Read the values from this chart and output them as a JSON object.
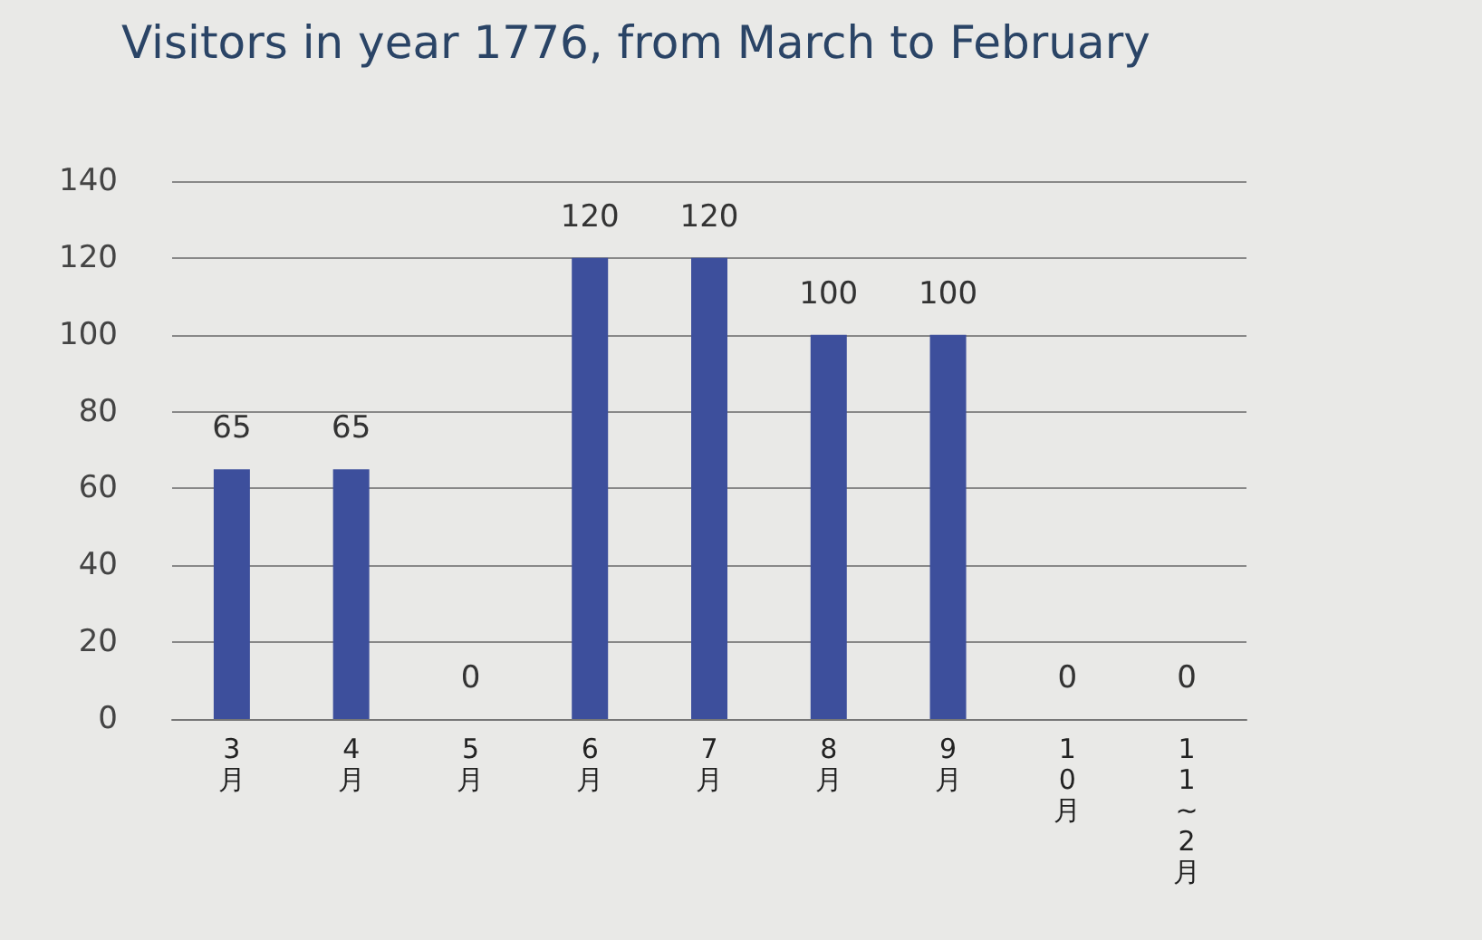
{
  "chart_data": {
    "type": "bar",
    "title": "Visitors in year 1776, from March to February",
    "categories": [
      "3月",
      "4月",
      "5月",
      "6月",
      "7月",
      "8月",
      "9月",
      "10月",
      "11~2月"
    ],
    "values": [
      65,
      65,
      0,
      120,
      120,
      100,
      100,
      0,
      0
    ],
    "color": "#3d4f9c",
    "ylim": [
      0,
      140
    ],
    "yticks": [
      0,
      20,
      40,
      60,
      80,
      100,
      120,
      140
    ],
    "grid": "y",
    "data_labels": true
  }
}
